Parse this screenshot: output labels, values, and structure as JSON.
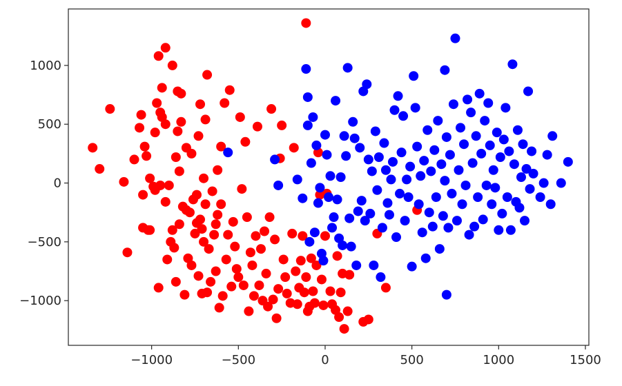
{
  "chart_data": {
    "type": "scatter",
    "title": "",
    "xlabel": "",
    "ylabel": "",
    "xlim": [
      -1480,
      1520
    ],
    "ylim": [
      -1380,
      1480
    ],
    "x_ticks": [
      -1000,
      -500,
      0,
      500,
      1000,
      1500
    ],
    "x_tick_labels": [
      "−1000",
      "−500",
      "0",
      "500",
      "1000",
      "1500"
    ],
    "y_ticks": [
      -1000,
      -500,
      0,
      500,
      1000
    ],
    "y_tick_labels": [
      "−1000",
      "−500",
      "0",
      "500",
      "1000"
    ],
    "grid": false,
    "legend": "none",
    "series": [
      {
        "color": "#ff0000",
        "points": [
          [
            -1340,
            300
          ],
          [
            -1300,
            120
          ],
          [
            -1240,
            630
          ],
          [
            -1160,
            10
          ],
          [
            -1140,
            -590
          ],
          [
            -1100,
            200
          ],
          [
            -1070,
            470
          ],
          [
            -1060,
            580
          ],
          [
            -1050,
            -100
          ],
          [
            -1050,
            -380
          ],
          [
            -1040,
            310
          ],
          [
            -1030,
            230
          ],
          [
            -1020,
            -400
          ],
          [
            -1010,
            40
          ],
          [
            -990,
            -30
          ],
          [
            -980,
            430
          ],
          [
            -980,
            -60
          ],
          [
            -970,
            680
          ],
          [
            -960,
            1080
          ],
          [
            -960,
            -890
          ],
          [
            -950,
            600
          ],
          [
            -950,
            -20
          ],
          [
            -940,
            810
          ],
          [
            -940,
            560
          ],
          [
            -920,
            1150
          ],
          [
            -920,
            500
          ],
          [
            -920,
            -160
          ],
          [
            -910,
            -650
          ],
          [
            -900,
            -20
          ],
          [
            -890,
            -500
          ],
          [
            -880,
            1000
          ],
          [
            -880,
            -400
          ],
          [
            -870,
            -550
          ],
          [
            -860,
            220
          ],
          [
            -860,
            -840
          ],
          [
            -850,
            780
          ],
          [
            -850,
            440
          ],
          [
            -840,
            100
          ],
          [
            -840,
            -350
          ],
          [
            -830,
            760
          ],
          [
            -830,
            520
          ],
          [
            -820,
            -200
          ],
          [
            -810,
            -950
          ],
          [
            -800,
            300
          ],
          [
            -800,
            -230
          ],
          [
            -790,
            -640
          ],
          [
            -780,
            -250
          ],
          [
            -770,
            250
          ],
          [
            -770,
            -700
          ],
          [
            -760,
            -140
          ],
          [
            -750,
            -430
          ],
          [
            -740,
            -340
          ],
          [
            -740,
            -100
          ],
          [
            -730,
            400
          ],
          [
            -730,
            -790
          ],
          [
            -720,
            670
          ],
          [
            -720,
            -310
          ],
          [
            -710,
            -390
          ],
          [
            -710,
            -940
          ],
          [
            -700,
            40
          ],
          [
            -700,
            -500
          ],
          [
            -690,
            540
          ],
          [
            -690,
            -180
          ],
          [
            -680,
            920
          ],
          [
            -680,
            -930
          ],
          [
            -670,
            -560
          ],
          [
            -660,
            -840
          ],
          [
            -650,
            -70
          ],
          [
            -640,
            -440
          ],
          [
            -630,
            -350
          ],
          [
            -630,
            -750
          ],
          [
            -620,
            110
          ],
          [
            -620,
            -270
          ],
          [
            -610,
            -1060
          ],
          [
            -600,
            310
          ],
          [
            -600,
            -180
          ],
          [
            -590,
            -960
          ],
          [
            -580,
            680
          ],
          [
            -570,
            -650
          ],
          [
            -560,
            -440
          ],
          [
            -550,
            790
          ],
          [
            -540,
            -880
          ],
          [
            -530,
            -330
          ],
          [
            -520,
            -540
          ],
          [
            -510,
            -730
          ],
          [
            -500,
            -800
          ],
          [
            -490,
            560
          ],
          [
            -480,
            -50
          ],
          [
            -470,
            -870
          ],
          [
            -460,
            350
          ],
          [
            -450,
            -290
          ],
          [
            -440,
            -1090
          ],
          [
            -430,
            -590
          ],
          [
            -420,
            -700
          ],
          [
            -410,
            -960
          ],
          [
            -400,
            -450
          ],
          [
            -390,
            480
          ],
          [
            -380,
            -870
          ],
          [
            -370,
            -560
          ],
          [
            -360,
            -1000
          ],
          [
            -350,
            -410
          ],
          [
            -340,
            -770
          ],
          [
            -330,
            -1050
          ],
          [
            -320,
            -290
          ],
          [
            -310,
            630
          ],
          [
            -300,
            -990
          ],
          [
            -290,
            -480
          ],
          [
            -280,
            -1150
          ],
          [
            -270,
            -900
          ],
          [
            -260,
            210
          ],
          [
            -250,
            490
          ],
          [
            -240,
            -650
          ],
          [
            -230,
            -800
          ],
          [
            -220,
            -940
          ],
          [
            -200,
            -1020
          ],
          [
            -190,
            -430
          ],
          [
            -180,
            300
          ],
          [
            -170,
            -750
          ],
          [
            -160,
            -1030
          ],
          [
            -150,
            -890
          ],
          [
            -140,
            -660
          ],
          [
            -130,
            -450
          ],
          [
            -120,
            -930
          ],
          [
            -110,
            1360
          ],
          [
            -110,
            -800
          ],
          [
            -100,
            -1090
          ],
          [
            -90,
            -1050
          ],
          [
            -80,
            -640
          ],
          [
            -70,
            -920
          ],
          [
            -60,
            -1020
          ],
          [
            -50,
            -700
          ],
          [
            -40,
            260
          ],
          [
            -30,
            -100
          ],
          [
            -20,
            -820
          ],
          [
            -10,
            -1040
          ],
          [
            0,
            -450
          ],
          [
            10,
            -90
          ],
          [
            30,
            -920
          ],
          [
            40,
            -1030
          ],
          [
            60,
            -1080
          ],
          [
            70,
            -620
          ],
          [
            80,
            -1140
          ],
          [
            90,
            -930
          ],
          [
            100,
            -770
          ],
          [
            110,
            -1240
          ],
          [
            130,
            -1090
          ],
          [
            140,
            -780
          ],
          [
            220,
            -1180
          ],
          [
            250,
            -1160
          ],
          [
            300,
            -430
          ],
          [
            350,
            -890
          ],
          [
            530,
            -230
          ],
          [
            -1010,
            -400
          ]
        ]
      },
      {
        "color": "#0000ff",
        "points": [
          [
            -560,
            260
          ],
          [
            -290,
            200
          ],
          [
            -270,
            -20
          ],
          [
            -160,
            30
          ],
          [
            -130,
            -130
          ],
          [
            -110,
            970
          ],
          [
            -100,
            730
          ],
          [
            -100,
            490
          ],
          [
            -90,
            -500
          ],
          [
            -80,
            170
          ],
          [
            -70,
            560
          ],
          [
            -60,
            -420
          ],
          [
            -50,
            320
          ],
          [
            -40,
            -170
          ],
          [
            -30,
            -40
          ],
          [
            -20,
            -600
          ],
          [
            -10,
            -660
          ],
          [
            0,
            410
          ],
          [
            10,
            240
          ],
          [
            20,
            -120
          ],
          [
            30,
            60
          ],
          [
            40,
            -380
          ],
          [
            50,
            -290
          ],
          [
            60,
            700
          ],
          [
            70,
            -140
          ],
          [
            80,
            -470
          ],
          [
            90,
            50
          ],
          [
            100,
            -530
          ],
          [
            110,
            400
          ],
          [
            120,
            230
          ],
          [
            130,
            980
          ],
          [
            140,
            -300
          ],
          [
            150,
            -540
          ],
          [
            160,
            520
          ],
          [
            170,
            380
          ],
          [
            180,
            -700
          ],
          [
            190,
            -240
          ],
          [
            200,
            300
          ],
          [
            210,
            -150
          ],
          [
            220,
            780
          ],
          [
            230,
            -320
          ],
          [
            240,
            840
          ],
          [
            250,
            200
          ],
          [
            260,
            -260
          ],
          [
            270,
            100
          ],
          [
            280,
            -700
          ],
          [
            290,
            440
          ],
          [
            300,
            -60
          ],
          [
            310,
            220
          ],
          [
            320,
            -800
          ],
          [
            330,
            -380
          ],
          [
            340,
            340
          ],
          [
            350,
            110
          ],
          [
            360,
            -170
          ],
          [
            370,
            -270
          ],
          [
            380,
            30
          ],
          [
            390,
            180
          ],
          [
            400,
            620
          ],
          [
            410,
            -460
          ],
          [
            420,
            740
          ],
          [
            430,
            -90
          ],
          [
            440,
            260
          ],
          [
            450,
            570
          ],
          [
            460,
            -320
          ],
          [
            470,
            30
          ],
          [
            480,
            -120
          ],
          [
            490,
            140
          ],
          [
            500,
            -710
          ],
          [
            510,
            910
          ],
          [
            520,
            640
          ],
          [
            530,
            310
          ],
          [
            540,
            -180
          ],
          [
            550,
            60
          ],
          [
            560,
            -420
          ],
          [
            570,
            190
          ],
          [
            580,
            -640
          ],
          [
            590,
            450
          ],
          [
            600,
            -250
          ],
          [
            610,
            100
          ],
          [
            620,
            -370
          ],
          [
            630,
            280
          ],
          [
            640,
            -120
          ],
          [
            650,
            530
          ],
          [
            660,
            -560
          ],
          [
            670,
            160
          ],
          [
            680,
            -280
          ],
          [
            690,
            20
          ],
          [
            690,
            960
          ],
          [
            700,
            -950
          ],
          [
            700,
            390
          ],
          [
            710,
            -380
          ],
          [
            720,
            240
          ],
          [
            730,
            -90
          ],
          [
            740,
            670
          ],
          [
            750,
            1230
          ],
          [
            760,
            -320
          ],
          [
            770,
            110
          ],
          [
            780,
            470
          ],
          [
            790,
            -180
          ],
          [
            800,
            330
          ],
          [
            810,
            -20
          ],
          [
            820,
            710
          ],
          [
            830,
            -440
          ],
          [
            840,
            600
          ],
          [
            850,
            170
          ],
          [
            860,
            -370
          ],
          [
            870,
            400
          ],
          [
            880,
            -120
          ],
          [
            890,
            760
          ],
          [
            900,
            250
          ],
          [
            910,
            -310
          ],
          [
            920,
            530
          ],
          [
            930,
            -20
          ],
          [
            940,
            680
          ],
          [
            950,
            320
          ],
          [
            960,
            -180
          ],
          [
            970,
            110
          ],
          [
            980,
            -40
          ],
          [
            990,
            430
          ],
          [
            1000,
            -400
          ],
          [
            1010,
            220
          ],
          [
            1020,
            -260
          ],
          [
            1030,
            370
          ],
          [
            1040,
            640
          ],
          [
            1050,
            -120
          ],
          [
            1060,
            270
          ],
          [
            1070,
            -400
          ],
          [
            1080,
            1010
          ],
          [
            1090,
            160
          ],
          [
            1100,
            -160
          ],
          [
            1110,
            450
          ],
          [
            1120,
            -210
          ],
          [
            1130,
            50
          ],
          [
            1140,
            330
          ],
          [
            1150,
            -320
          ],
          [
            1160,
            120
          ],
          [
            1170,
            780
          ],
          [
            1180,
            -50
          ],
          [
            1190,
            270
          ],
          [
            1200,
            80
          ],
          [
            1240,
            -120
          ],
          [
            1260,
            0
          ],
          [
            1280,
            240
          ],
          [
            1300,
            -180
          ],
          [
            1310,
            400
          ],
          [
            1360,
            0
          ],
          [
            1400,
            180
          ]
        ]
      }
    ]
  }
}
